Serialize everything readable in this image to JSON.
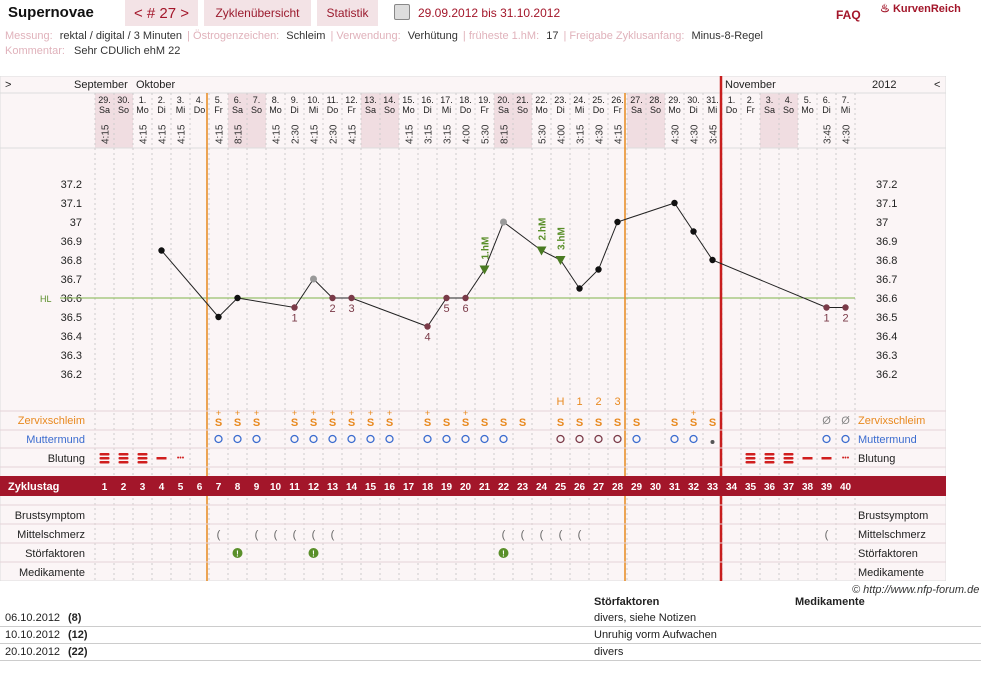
{
  "header": {
    "title": "Supernovae",
    "cycle_nav": "< # 27 >",
    "tab_overview": "Zyklenübersicht",
    "tab_stats": "Statistik",
    "date_range": "29.09.2012 bis 31.10.2012",
    "faq": "FAQ",
    "brand": "KurvenReich"
  },
  "meta": {
    "line1": [
      {
        "k": "Messung:",
        "v": "rektal / digital / 3 Minuten"
      },
      {
        "k": "Östrogenzeichen:",
        "v": "Schleim"
      },
      {
        "k": "Verwendung:",
        "v": "Verhütung"
      },
      {
        "k": "früheste 1.hM:",
        "v": "17"
      },
      {
        "k": "Freigabe Zyklusanfang:",
        "v": "Minus-8-Regel"
      }
    ],
    "comment_key": "Kommentar:",
    "comment_val": "Sehr CDUlich ehM 22"
  },
  "calendar": {
    "nav_left": ">",
    "nav_right": "<",
    "year": "2012",
    "months": [
      {
        "label": "September",
        "col": 0
      },
      {
        "label": "Oktober",
        "col": 2
      },
      {
        "label": "November",
        "col": 33
      }
    ],
    "days": [
      {
        "d": "29.",
        "w": "Sa",
        "t": "4:15"
      },
      {
        "d": "30.",
        "w": "So",
        "t": ""
      },
      {
        "d": "1.",
        "w": "Mo",
        "t": "4:15"
      },
      {
        "d": "2.",
        "w": "Di",
        "t": "4:15"
      },
      {
        "d": "3.",
        "w": "Mi",
        "t": "4:15"
      },
      {
        "d": "4.",
        "w": "Do",
        "t": ""
      },
      {
        "d": "5.",
        "w": "Fr",
        "t": "4:15"
      },
      {
        "d": "6.",
        "w": "Sa",
        "t": "8:15"
      },
      {
        "d": "7.",
        "w": "So",
        "t": ""
      },
      {
        "d": "8.",
        "w": "Mo",
        "t": "4:15"
      },
      {
        "d": "9.",
        "w": "Di",
        "t": "2:30"
      },
      {
        "d": "10.",
        "w": "Mi",
        "t": "4:15"
      },
      {
        "d": "11.",
        "w": "Do",
        "t": "2:30"
      },
      {
        "d": "12.",
        "w": "Fr",
        "t": "4:15"
      },
      {
        "d": "13.",
        "w": "Sa",
        "t": ""
      },
      {
        "d": "14.",
        "w": "So",
        "t": ""
      },
      {
        "d": "15.",
        "w": "Mo",
        "t": "4:15"
      },
      {
        "d": "16.",
        "w": "Di",
        "t": "3:15"
      },
      {
        "d": "17.",
        "w": "Mi",
        "t": "3:15"
      },
      {
        "d": "18.",
        "w": "Do",
        "t": "4:00"
      },
      {
        "d": "19.",
        "w": "Fr",
        "t": "5:30"
      },
      {
        "d": "20.",
        "w": "Sa",
        "t": "8:15"
      },
      {
        "d": "21.",
        "w": "So",
        "t": ""
      },
      {
        "d": "22.",
        "w": "Mo",
        "t": "5:30"
      },
      {
        "d": "23.",
        "w": "Di",
        "t": "4:00"
      },
      {
        "d": "24.",
        "w": "Mi",
        "t": "3:15"
      },
      {
        "d": "25.",
        "w": "Do",
        "t": "4:30"
      },
      {
        "d": "26.",
        "w": "Fr",
        "t": "4:15"
      },
      {
        "d": "27.",
        "w": "Sa",
        "t": ""
      },
      {
        "d": "28.",
        "w": "So",
        "t": ""
      },
      {
        "d": "29.",
        "w": "Mo",
        "t": "4:30"
      },
      {
        "d": "30.",
        "w": "Di",
        "t": "4:30"
      },
      {
        "d": "31.",
        "w": "Mi",
        "t": "3:45"
      },
      {
        "d": "1.",
        "w": "Do",
        "t": ""
      },
      {
        "d": "2.",
        "w": "Fr",
        "t": ""
      },
      {
        "d": "3.",
        "w": "Sa",
        "t": ""
      },
      {
        "d": "4.",
        "w": "So",
        "t": ""
      },
      {
        "d": "5.",
        "w": "Mo",
        "t": ""
      },
      {
        "d": "6.",
        "w": "Di",
        "t": "3:45"
      },
      {
        "d": "7.",
        "w": "Mi",
        "t": "4:30"
      }
    ],
    "weekend_cols": [
      0,
      1,
      7,
      8,
      14,
      15,
      21,
      22,
      28,
      29,
      35,
      36
    ]
  },
  "chart_data": {
    "type": "line",
    "y_ticks": [
      "37.2",
      "37.1",
      "37",
      "36.9",
      "36.8",
      "36.7",
      "36.6",
      "36.5",
      "36.4",
      "36.3",
      "36.2"
    ],
    "ylim": [
      36.2,
      37.2
    ],
    "hl_label": "HL",
    "hl_value": 36.6,
    "points": [
      {
        "c": 3,
        "v": 36.85,
        "s": "n"
      },
      {
        "c": 6,
        "v": 36.5,
        "s": "n"
      },
      {
        "c": 7,
        "v": 36.6,
        "s": "n"
      },
      {
        "c": 10,
        "v": 36.55,
        "s": "l"
      },
      {
        "c": 11,
        "v": 36.7,
        "s": "x"
      },
      {
        "c": 12,
        "v": 36.6,
        "s": "l"
      },
      {
        "c": 13,
        "v": 36.6,
        "s": "l"
      },
      {
        "c": 17,
        "v": 36.45,
        "s": "l"
      },
      {
        "c": 18,
        "v": 36.6,
        "s": "l"
      },
      {
        "c": 19,
        "v": 36.6,
        "s": "l"
      },
      {
        "c": 20,
        "v": 36.75,
        "s": "t"
      },
      {
        "c": 21,
        "v": 37.0,
        "s": "x"
      },
      {
        "c": 23,
        "v": 36.85,
        "s": "t"
      },
      {
        "c": 24,
        "v": 36.8,
        "s": "t"
      },
      {
        "c": 25,
        "v": 36.65,
        "s": "n"
      },
      {
        "c": 26,
        "v": 36.75,
        "s": "n"
      },
      {
        "c": 27,
        "v": 37.0,
        "s": "n"
      },
      {
        "c": 30,
        "v": 37.1,
        "s": "n"
      },
      {
        "c": 31,
        "v": 36.95,
        "s": "n"
      },
      {
        "c": 32,
        "v": 36.8,
        "s": "n"
      },
      {
        "c": 38,
        "v": 36.55,
        "s": "l"
      },
      {
        "c": 39,
        "v": 36.55,
        "s": "l"
      }
    ],
    "low_labels": [
      {
        "c": 10,
        "t": "1"
      },
      {
        "c": 12,
        "t": "2"
      },
      {
        "c": 13,
        "t": "3"
      },
      {
        "c": 17,
        "t": "4"
      },
      {
        "c": 18,
        "t": "5"
      },
      {
        "c": 19,
        "t": "6"
      },
      {
        "c": 38,
        "t": "1"
      },
      {
        "c": 39,
        "t": "2"
      }
    ],
    "hm_labels": [
      {
        "c": 20,
        "t": "1.hM"
      },
      {
        "c": 23,
        "t": "2.hM"
      },
      {
        "c": 24,
        "t": "3.hM"
      }
    ]
  },
  "rows": {
    "cervical": "Zervixschleim",
    "cervix": "Muttermund",
    "bleeding": "Blutung",
    "cycle_day": "Zyklustag",
    "breast": "Brustsymptom",
    "midpain": "Mittelschmerz",
    "disturb": "Störfaktoren",
    "meds": "Medikamente"
  },
  "cervical_marks": {
    "s_plus": [
      6,
      7,
      8,
      10,
      11,
      12,
      13,
      14,
      15,
      17,
      18,
      19,
      20,
      21,
      22,
      24,
      25,
      26,
      27,
      28,
      30,
      31,
      32
    ],
    "plus_cols": [
      6,
      7,
      8,
      10,
      11,
      12,
      13,
      14,
      15,
      17,
      19,
      31
    ],
    "o_cols": [
      38,
      39
    ],
    "peak": [
      {
        "c": 24,
        "t": "H"
      },
      {
        "c": 25,
        "t": "1"
      },
      {
        "c": 26,
        "t": "2"
      },
      {
        "c": 27,
        "t": "3"
      }
    ]
  },
  "cycle_days": [
    "1",
    "2",
    "3",
    "4",
    "5",
    "6",
    "7",
    "8",
    "9",
    "10",
    "11",
    "12",
    "13",
    "14",
    "15",
    "16",
    "17",
    "18",
    "19",
    "20",
    "21",
    "22",
    "23",
    "24",
    "25",
    "26",
    "27",
    "28",
    "29",
    "30",
    "31",
    "32",
    "33",
    "34",
    "35",
    "36",
    "37",
    "38",
    "39",
    "40"
  ],
  "copyright": "© http://www.nfp-forum.de",
  "notes": {
    "col_disturb": "Störfaktoren",
    "col_meds": "Medikamente",
    "entries": [
      {
        "date": "06.10.2012",
        "day": "(8)",
        "text": "divers, siehe Notizen"
      },
      {
        "date": "10.10.2012",
        "day": "(12)",
        "text": "Unruhig vorm Aufwachen"
      },
      {
        "date": "20.10.2012",
        "day": "(22)",
        "text": "divers"
      }
    ]
  },
  "colors": {
    "accent": "#a3162a",
    "orange": "#e8891f",
    "blue": "#3b6ccf",
    "green": "#5a8f2a",
    "hl": "#7fb24a"
  }
}
